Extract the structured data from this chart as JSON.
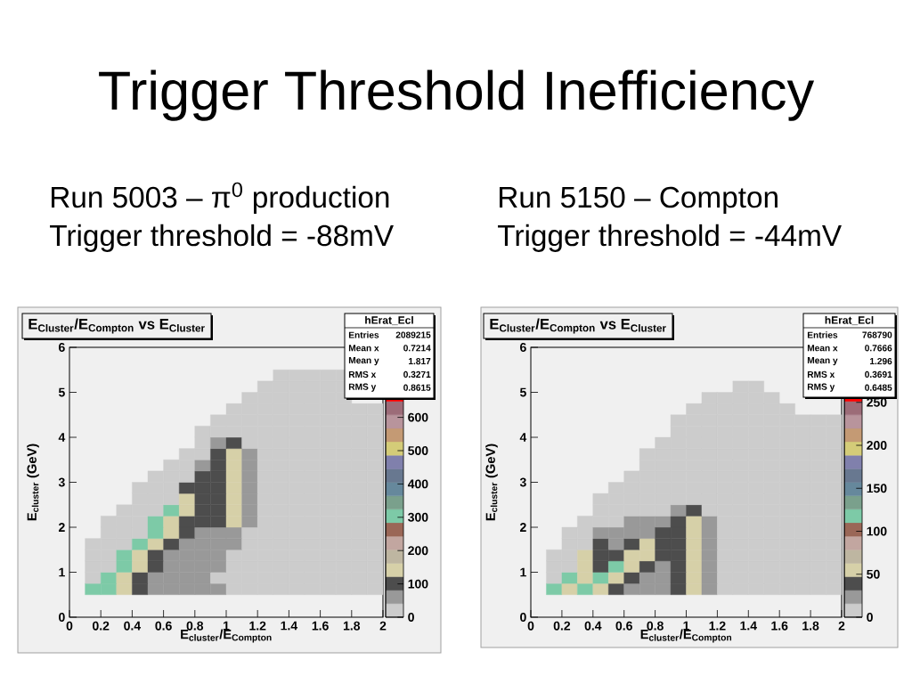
{
  "chart_data": [
    {
      "type": "other",
      "title": "Trigger Threshold Inefficiency"
    },
    {
      "type": "scatter",
      "title": "E$_{Cluster}$/E$_{Compton}$ vs E$_{Cluster}$",
      "subtitle": "Run 5003 – π$^{0}$ production",
      "annotations": [
        "Trigger threshold = -88mV",
        "hErat_Ecl",
        "Entries",
        "2089215",
        "Mean x",
        "0.7214",
        "Mean y",
        "1.817",
        "RMS x",
        "0.3271",
        "RMS y",
        "0.8615"
      ],
      "xlabel": "E$_{cluster}$/E$_{Compton}$",
      "ylabel": "E$_{cluster}$ (GeV)",
      "xlim": [
        0,
        2
      ],
      "ylim": [
        0,
        6
      ],
      "xticks": [
        0,
        0.2,
        0.4,
        0.6,
        0.8,
        1,
        1.2,
        1.4,
        1.6,
        1.8,
        2
      ],
      "yticks": [
        0,
        1,
        2,
        3,
        4,
        5,
        6
      ],
      "marker": "square",
      "clim": [
        0,
        810
      ],
      "cticks": [
        0,
        100,
        200,
        300,
        400,
        500,
        600
      ],
      "x": [
        0.15,
        0.25,
        0.35,
        0.45,
        0.55,
        0.65,
        0.75,
        0.85,
        0.95,
        1.05,
        1.15,
        1.25,
        1.35,
        1.45,
        1.55,
        1.65,
        1.75,
        1.85,
        1.95,
        0.15,
        0.25,
        0.35,
        0.45,
        0.55,
        0.65,
        0.75,
        0.85,
        0.95,
        1.05,
        1.15,
        1.25,
        1.35,
        1.45,
        1.55,
        1.65,
        1.75,
        1.85,
        1.95,
        0.15,
        0.25,
        0.35,
        0.45,
        0.55,
        0.65,
        0.75,
        0.85,
        0.95,
        1.05,
        1.15,
        1.25,
        1.35,
        1.45,
        1.55,
        1.65,
        1.75,
        1.85,
        1.95,
        0.15,
        0.25,
        0.35,
        0.45,
        0.55,
        0.65,
        0.75,
        0.85,
        0.95,
        1.05,
        1.15,
        1.25,
        1.35,
        1.45,
        1.55,
        1.65,
        1.75,
        1.85,
        1.95,
        0.15,
        0.25,
        0.35,
        0.45,
        0.55,
        0.65,
        0.75,
        0.85,
        0.95,
        1.05,
        1.15,
        1.25,
        1.35,
        1.45,
        1.55,
        1.65,
        1.75,
        1.85,
        1.95,
        0.25,
        0.35,
        0.45,
        0.55,
        0.65,
        0.75,
        0.85,
        0.95,
        1.05,
        1.15,
        1.25,
        1.35,
        1.45,
        1.55,
        1.65,
        1.75,
        1.85,
        1.95,
        0.25,
        0.35,
        0.45,
        0.55,
        0.65,
        0.75,
        0.85,
        0.95,
        1.05,
        1.15,
        1.25,
        1.35,
        1.45,
        1.55,
        1.65,
        1.75,
        1.85,
        1.95,
        0.35,
        0.45,
        0.55,
        0.65,
        0.75,
        0.85,
        0.95,
        1.05,
        1.15,
        1.25,
        1.35,
        1.45,
        1.55,
        1.65,
        1.75,
        1.85,
        1.95,
        0.45,
        0.55,
        0.65,
        0.75,
        0.85,
        0.95,
        1.05,
        1.15,
        1.25,
        1.35,
        1.45,
        1.55,
        1.65,
        1.75,
        1.85,
        1.95,
        0.45,
        0.55,
        0.65,
        0.75,
        0.85,
        0.95,
        1.05,
        1.15,
        1.25,
        1.35,
        1.45,
        1.55,
        1.65,
        1.75,
        1.85,
        1.95,
        0.55,
        0.65,
        0.75,
        0.85,
        0.95,
        1.05,
        1.15,
        1.25,
        1.35,
        1.45,
        1.55,
        1.65,
        1.75,
        1.85,
        1.95,
        0.65,
        0.75,
        0.85,
        0.95,
        1.05,
        1.15,
        1.25,
        1.35,
        1.45,
        1.55,
        1.65,
        1.75,
        1.85,
        1.95,
        0.75,
        0.85,
        0.95,
        1.05,
        1.15,
        1.25,
        1.35,
        1.45,
        1.55,
        1.65,
        1.75,
        1.85,
        1.95,
        0.85,
        0.95,
        1.05,
        1.15,
        1.25,
        1.35,
        1.45,
        1.55,
        1.65,
        1.75,
        1.85,
        1.95,
        0.85,
        0.95,
        1.05,
        1.15,
        1.25,
        1.35,
        1.45,
        1.55,
        1.65,
        1.75,
        1.85,
        1.95,
        0.95,
        1.05,
        1.15,
        1.25,
        1.35,
        1.45,
        1.55,
        1.65,
        1.75,
        1.85,
        1.95,
        1.05,
        1.15,
        1.25,
        1.35,
        1.45,
        1.55,
        1.65,
        1.75,
        1.85,
        1.95,
        1.15,
        1.25,
        1.35,
        1.45,
        1.55,
        1.65,
        1.75,
        1.25,
        1.35,
        1.45,
        1.55,
        1.65,
        1.75,
        1.35,
        1.45,
        1.55,
        1.65,
        1.75
      ],
      "values": [
        0.625,
        0.625,
        0.625,
        0.625,
        0.625,
        0.625,
        0.625,
        0.625,
        0.625,
        0.625,
        0.625,
        0.625,
        0.625,
        0.625,
        0.625,
        0.625,
        0.625,
        0.625,
        0.625,
        0.875,
        0.875,
        0.875,
        0.875,
        0.875,
        0.875,
        0.875,
        0.875,
        0.875,
        0.875,
        0.875,
        0.875,
        0.875,
        0.875,
        0.875,
        0.875,
        0.875,
        0.875,
        0.875,
        1.125,
        1.125,
        1.125,
        1.125,
        1.125,
        1.125,
        1.125,
        1.125,
        1.125,
        1.125,
        1.125,
        1.125,
        1.125,
        1.125,
        1.125,
        1.125,
        1.125,
        1.125,
        1.125,
        1.375,
        1.375,
        1.375,
        1.375,
        1.375,
        1.375,
        1.375,
        1.375,
        1.375,
        1.375,
        1.375,
        1.375,
        1.375,
        1.375,
        1.375,
        1.375,
        1.375,
        1.375,
        1.375,
        1.625,
        1.625,
        1.625,
        1.625,
        1.625,
        1.625,
        1.625,
        1.625,
        1.625,
        1.625,
        1.625,
        1.625,
        1.625,
        1.625,
        1.625,
        1.625,
        1.625,
        1.625,
        1.625,
        1.875,
        1.875,
        1.875,
        1.875,
        1.875,
        1.875,
        1.875,
        1.875,
        1.875,
        1.875,
        1.875,
        1.875,
        1.875,
        1.875,
        1.875,
        1.875,
        1.875,
        1.875,
        2.125,
        2.125,
        2.125,
        2.125,
        2.125,
        2.125,
        2.125,
        2.125,
        2.125,
        2.125,
        2.125,
        2.125,
        2.125,
        2.125,
        2.125,
        2.125,
        2.125,
        2.125,
        2.375,
        2.375,
        2.375,
        2.375,
        2.375,
        2.375,
        2.375,
        2.375,
        2.375,
        2.375,
        2.375,
        2.375,
        2.375,
        2.375,
        2.375,
        2.375,
        2.375,
        2.625,
        2.625,
        2.625,
        2.625,
        2.625,
        2.625,
        2.625,
        2.625,
        2.625,
        2.625,
        2.625,
        2.625,
        2.625,
        2.625,
        2.625,
        2.625,
        2.875,
        2.875,
        2.875,
        2.875,
        2.875,
        2.875,
        2.875,
        2.875,
        2.875,
        2.875,
        2.875,
        2.875,
        2.875,
        2.875,
        2.875,
        2.875,
        3.125,
        3.125,
        3.125,
        3.125,
        3.125,
        3.125,
        3.125,
        3.125,
        3.125,
        3.125,
        3.125,
        3.125,
        3.125,
        3.125,
        3.125,
        3.375,
        3.375,
        3.375,
        3.375,
        3.375,
        3.375,
        3.375,
        3.375,
        3.375,
        3.375,
        3.375,
        3.375,
        3.375,
        3.375,
        3.625,
        3.625,
        3.625,
        3.625,
        3.625,
        3.625,
        3.625,
        3.625,
        3.625,
        3.625,
        3.625,
        3.625,
        3.625,
        3.875,
        3.875,
        3.875,
        3.875,
        3.875,
        3.875,
        3.875,
        3.875,
        3.875,
        3.875,
        3.875,
        3.875,
        4.125,
        4.125,
        4.125,
        4.125,
        4.125,
        4.125,
        4.125,
        4.125,
        4.125,
        4.125,
        4.125,
        4.125,
        4.375,
        4.375,
        4.375,
        4.375,
        4.375,
        4.375,
        4.375,
        4.375,
        4.375,
        4.375,
        4.375,
        4.625,
        4.625,
        4.625,
        4.625,
        4.625,
        4.625,
        4.625,
        4.625,
        4.625,
        4.625,
        4.875,
        4.875,
        4.875,
        4.875,
        4.875,
        4.875,
        4.875,
        5.125,
        5.125,
        5.125,
        5.125,
        5.125,
        5.125,
        5.375,
        5.375,
        5.375,
        5.375,
        5.375
      ],
      "cvalues": [
        305,
        305,
        140,
        100,
        60,
        60,
        60,
        60,
        60,
        20,
        20,
        20,
        20,
        20,
        20,
        20,
        20,
        20,
        20,
        20,
        305,
        140,
        100,
        60,
        60,
        60,
        60,
        20,
        20,
        20,
        20,
        20,
        20,
        20,
        20,
        20,
        20,
        20,
        20,
        20,
        305,
        140,
        100,
        60,
        60,
        60,
        60,
        20,
        20,
        20,
        20,
        20,
        20,
        20,
        20,
        20,
        20,
        20,
        20,
        305,
        140,
        100,
        60,
        60,
        60,
        60,
        20,
        20,
        20,
        20,
        20,
        20,
        20,
        20,
        20,
        20,
        20,
        20,
        20,
        305,
        140,
        100,
        60,
        60,
        60,
        60,
        20,
        20,
        20,
        20,
        20,
        20,
        20,
        20,
        20,
        20,
        20,
        20,
        305,
        140,
        100,
        60,
        60,
        60,
        20,
        20,
        20,
        20,
        20,
        20,
        20,
        20,
        20,
        20,
        20,
        20,
        305,
        140,
        100,
        100,
        100,
        140,
        60,
        20,
        20,
        20,
        20,
        20,
        20,
        20,
        20,
        20,
        20,
        20,
        305,
        140,
        100,
        100,
        140,
        60,
        20,
        20,
        20,
        20,
        20,
        20,
        20,
        20,
        20,
        20,
        20,
        140,
        100,
        100,
        140,
        60,
        20,
        20,
        20,
        20,
        20,
        20,
        20,
        20,
        20,
        20,
        20,
        100,
        100,
        100,
        140,
        60,
        20,
        20,
        20,
        20,
        20,
        20,
        20,
        20,
        20,
        20,
        20,
        100,
        100,
        140,
        60,
        20,
        20,
        20,
        20,
        20,
        20,
        20,
        20,
        20,
        20,
        60,
        100,
        140,
        60,
        20,
        20,
        20,
        20,
        20,
        20,
        20,
        20,
        20,
        20,
        100,
        140,
        60,
        20,
        20,
        20,
        20,
        20,
        20,
        20,
        20,
        20,
        60,
        100,
        20,
        20,
        20,
        20,
        20,
        20,
        20,
        20,
        20,
        20,
        20,
        20,
        20,
        20,
        20,
        20,
        20,
        20,
        20,
        20,
        20,
        20,
        20,
        20,
        20,
        20,
        20,
        20,
        20,
        20,
        20,
        20,
        20,
        20,
        20,
        20,
        20,
        20,
        20,
        20,
        20,
        20,
        20,
        20,
        20,
        20,
        20,
        20,
        20,
        20,
        20,
        20,
        20,
        20,
        20,
        20,
        20,
        20,
        20,
        20
      ]
    },
    {
      "type": "scatter",
      "title": "E$_{Cluster}$/E$_{Compton}$ vs E$_{Cluster}$",
      "subtitle": "Run 5150 – Compton",
      "annotations": [
        "Trigger threshold = -44mV",
        "hErat_Ecl",
        "Entries",
        "768790",
        "Mean x",
        "0.7666",
        "Mean y",
        "1.296",
        "RMS x",
        "0.3691",
        "RMS y",
        "0.6485"
      ],
      "xlabel": "E$_{cluster}$/E$_{Compton}$",
      "ylabel": "E$_{cluster}$ (GeV)",
      "xlim": [
        0,
        2
      ],
      "ylim": [
        0,
        6
      ],
      "xticks": [
        0,
        0.2,
        0.4,
        0.6,
        0.8,
        1,
        1.2,
        1.4,
        1.6,
        1.8,
        2
      ],
      "yticks": [
        0,
        1,
        2,
        3,
        4,
        5,
        6
      ],
      "marker": "square",
      "clim": [
        0,
        314
      ],
      "cticks": [
        0,
        50,
        100,
        150,
        200,
        250
      ],
      "x": [
        0.15,
        0.25,
        0.35,
        0.45,
        0.55,
        0.65,
        0.75,
        0.85,
        0.95,
        1.05,
        1.15,
        1.25,
        1.35,
        1.45,
        1.55,
        1.65,
        1.75,
        1.85,
        1.95,
        0.15,
        0.25,
        0.35,
        0.45,
        0.55,
        0.65,
        0.75,
        0.85,
        0.95,
        1.05,
        1.15,
        1.25,
        1.35,
        1.45,
        1.55,
        1.65,
        1.75,
        1.85,
        1.95,
        0.15,
        0.25,
        0.35,
        0.45,
        0.55,
        0.65,
        0.75,
        0.85,
        0.95,
        1.05,
        1.15,
        1.25,
        1.35,
        1.45,
        1.55,
        1.65,
        1.75,
        1.85,
        1.95,
        0.15,
        0.25,
        0.35,
        0.45,
        0.55,
        0.65,
        0.75,
        0.85,
        0.95,
        1.05,
        1.15,
        1.25,
        1.35,
        1.45,
        1.55,
        1.65,
        1.75,
        1.85,
        1.95,
        0.25,
        0.35,
        0.45,
        0.55,
        0.65,
        0.75,
        0.85,
        0.95,
        1.05,
        1.15,
        1.25,
        1.35,
        1.45,
        1.55,
        1.65,
        1.75,
        1.85,
        1.95,
        0.25,
        0.35,
        0.45,
        0.55,
        0.65,
        0.75,
        0.85,
        0.95,
        1.05,
        1.15,
        1.25,
        1.35,
        1.45,
        1.55,
        1.65,
        1.75,
        1.85,
        1.95,
        0.35,
        0.45,
        0.55,
        0.65,
        0.75,
        0.85,
        0.95,
        1.05,
        1.15,
        1.25,
        1.35,
        1.45,
        1.55,
        1.65,
        1.75,
        1.85,
        1.95,
        0.45,
        0.55,
        0.65,
        0.75,
        0.85,
        0.95,
        1.05,
        1.15,
        1.25,
        1.35,
        1.45,
        1.55,
        1.65,
        1.75,
        1.85,
        1.95,
        0.45,
        0.55,
        0.65,
        0.75,
        0.85,
        0.95,
        1.05,
        1.15,
        1.25,
        1.35,
        1.45,
        1.55,
        1.65,
        1.75,
        1.85,
        1.95,
        0.55,
        0.65,
        0.75,
        0.85,
        0.95,
        1.05,
        1.15,
        1.25,
        1.35,
        1.45,
        1.55,
        1.65,
        1.75,
        1.85,
        1.95,
        0.65,
        0.75,
        0.85,
        0.95,
        1.05,
        1.15,
        1.25,
        1.35,
        1.45,
        1.55,
        1.65,
        1.75,
        1.85,
        1.95,
        0.75,
        0.85,
        0.95,
        1.05,
        1.15,
        1.25,
        1.35,
        1.45,
        1.55,
        1.65,
        1.75,
        1.85,
        1.95,
        0.75,
        0.85,
        0.95,
        1.05,
        1.15,
        1.25,
        1.35,
        1.45,
        1.55,
        1.65,
        1.75,
        1.85,
        1.95,
        0.85,
        0.95,
        1.05,
        1.15,
        1.25,
        1.35,
        1.45,
        1.55,
        1.65,
        1.75,
        1.85,
        1.95,
        0.95,
        1.05,
        1.15,
        1.25,
        1.35,
        1.45,
        1.55,
        1.65,
        1.75,
        1.85,
        1.95,
        0.95,
        1.05,
        1.15,
        1.25,
        1.35,
        1.45,
        1.55,
        1.65,
        1.75,
        1.85,
        1.95,
        1.05,
        1.15,
        1.25,
        1.35,
        1.45,
        1.55,
        1.65,
        1.15,
        1.25,
        1.35,
        1.45,
        1.55,
        1.35,
        1.45
      ],
      "values": [
        0.625,
        0.625,
        0.625,
        0.625,
        0.625,
        0.625,
        0.625,
        0.625,
        0.625,
        0.625,
        0.625,
        0.625,
        0.625,
        0.625,
        0.625,
        0.625,
        0.625,
        0.625,
        0.625,
        0.875,
        0.875,
        0.875,
        0.875,
        0.875,
        0.875,
        0.875,
        0.875,
        0.875,
        0.875,
        0.875,
        0.875,
        0.875,
        0.875,
        0.875,
        0.875,
        0.875,
        0.875,
        0.875,
        1.125,
        1.125,
        1.125,
        1.125,
        1.125,
        1.125,
        1.125,
        1.125,
        1.125,
        1.125,
        1.125,
        1.125,
        1.125,
        1.125,
        1.125,
        1.125,
        1.125,
        1.125,
        1.125,
        1.375,
        1.375,
        1.375,
        1.375,
        1.375,
        1.375,
        1.375,
        1.375,
        1.375,
        1.375,
        1.375,
        1.375,
        1.375,
        1.375,
        1.375,
        1.375,
        1.375,
        1.375,
        1.375,
        1.625,
        1.625,
        1.625,
        1.625,
        1.625,
        1.625,
        1.625,
        1.625,
        1.625,
        1.625,
        1.625,
        1.625,
        1.625,
        1.625,
        1.625,
        1.625,
        1.625,
        1.625,
        1.875,
        1.875,
        1.875,
        1.875,
        1.875,
        1.875,
        1.875,
        1.875,
        1.875,
        1.875,
        1.875,
        1.875,
        1.875,
        1.875,
        1.875,
        1.875,
        1.875,
        1.875,
        2.125,
        2.125,
        2.125,
        2.125,
        2.125,
        2.125,
        2.125,
        2.125,
        2.125,
        2.125,
        2.125,
        2.125,
        2.125,
        2.125,
        2.125,
        2.125,
        2.125,
        2.375,
        2.375,
        2.375,
        2.375,
        2.375,
        2.375,
        2.375,
        2.375,
        2.375,
        2.375,
        2.375,
        2.375,
        2.375,
        2.375,
        2.375,
        2.375,
        2.625,
        2.625,
        2.625,
        2.625,
        2.625,
        2.625,
        2.625,
        2.625,
        2.625,
        2.625,
        2.625,
        2.625,
        2.625,
        2.625,
        2.625,
        2.625,
        2.875,
        2.875,
        2.875,
        2.875,
        2.875,
        2.875,
        2.875,
        2.875,
        2.875,
        2.875,
        2.875,
        2.875,
        2.875,
        2.875,
        2.875,
        3.125,
        3.125,
        3.125,
        3.125,
        3.125,
        3.125,
        3.125,
        3.125,
        3.125,
        3.125,
        3.125,
        3.125,
        3.125,
        3.125,
        3.375,
        3.375,
        3.375,
        3.375,
        3.375,
        3.375,
        3.375,
        3.375,
        3.375,
        3.375,
        3.375,
        3.375,
        3.375,
        3.625,
        3.625,
        3.625,
        3.625,
        3.625,
        3.625,
        3.625,
        3.625,
        3.625,
        3.625,
        3.625,
        3.625,
        3.625,
        3.875,
        3.875,
        3.875,
        3.875,
        3.875,
        3.875,
        3.875,
        3.875,
        3.875,
        3.875,
        3.875,
        3.875,
        4.125,
        4.125,
        4.125,
        4.125,
        4.125,
        4.125,
        4.125,
        4.125,
        4.125,
        4.125,
        4.125,
        4.375,
        4.375,
        4.375,
        4.375,
        4.375,
        4.375,
        4.375,
        4.375,
        4.375,
        4.375,
        4.375,
        4.625,
        4.625,
        4.625,
        4.625,
        4.625,
        4.625,
        4.625,
        4.875,
        4.875,
        4.875,
        4.875,
        4.875,
        5.125,
        5.125
      ],
      "cvalues": [
        118,
        55,
        118,
        55,
        39,
        24,
        24,
        24,
        39,
        55,
        24,
        8,
        8,
        8,
        8,
        8,
        8,
        8,
        8,
        8,
        118,
        55,
        118,
        55,
        39,
        24,
        24,
        39,
        55,
        24,
        8,
        8,
        8,
        8,
        8,
        8,
        8,
        8,
        8,
        8,
        55,
        39,
        118,
        55,
        39,
        24,
        39,
        55,
        24,
        8,
        8,
        8,
        8,
        8,
        8,
        8,
        8,
        8,
        8,
        55,
        39,
        39,
        55,
        55,
        39,
        39,
        55,
        24,
        8,
        8,
        8,
        8,
        8,
        8,
        8,
        8,
        8,
        8,
        39,
        24,
        39,
        55,
        39,
        39,
        55,
        24,
        8,
        8,
        8,
        8,
        8,
        8,
        8,
        8,
        8,
        8,
        24,
        24,
        24,
        24,
        39,
        39,
        55,
        24,
        8,
        8,
        8,
        8,
        8,
        8,
        8,
        8,
        8,
        8,
        8,
        24,
        24,
        24,
        39,
        55,
        24,
        8,
        8,
        8,
        8,
        8,
        8,
        8,
        8,
        8,
        8,
        8,
        8,
        8,
        24,
        39,
        8,
        8,
        8,
        8,
        8,
        8,
        8,
        8,
        8,
        8,
        8,
        8,
        8,
        8,
        8,
        8,
        8,
        8,
        8,
        8,
        8,
        8,
        8,
        8,
        8,
        8,
        8,
        8,
        8,
        8,
        8,
        8,
        8,
        8,
        8,
        8,
        8,
        8,
        8,
        8,
        8,
        8,
        8,
        8,
        8,
        8,
        8,
        8,
        8,
        8,
        8,
        8,
        8,
        8,
        8,
        8,
        8,
        8,
        8,
        8,
        8,
        8,
        8,
        8,
        8,
        8,
        8,
        8,
        8,
        8,
        8,
        8,
        8,
        8,
        8,
        8,
        8,
        8,
        8,
        8,
        8,
        8,
        8,
        8,
        8,
        8,
        8,
        8,
        8,
        8,
        8,
        8,
        8,
        8,
        8,
        8,
        8,
        8,
        8,
        8,
        8,
        8,
        8,
        8,
        8,
        8,
        8,
        8,
        8,
        8,
        8,
        8,
        8,
        8,
        8,
        8,
        8,
        8,
        8,
        8,
        8,
        8,
        8,
        8,
        8,
        8,
        8,
        8
      ]
    }
  ]
}
